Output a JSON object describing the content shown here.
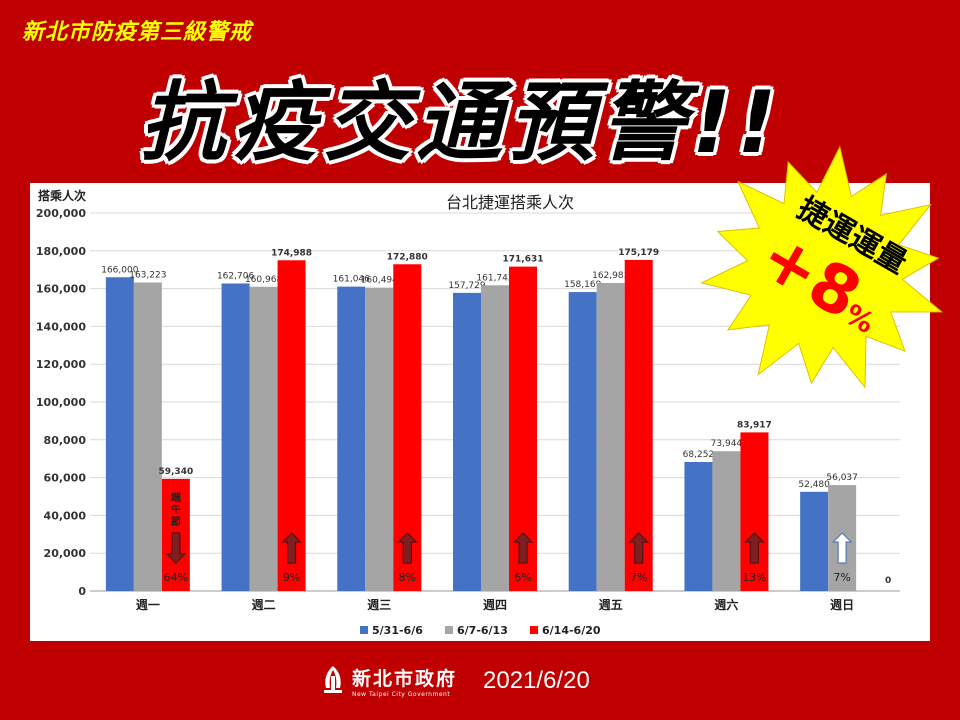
{
  "header": {
    "top_label": "新北市防疫第三級警戒",
    "headline": "抗疫交通預警!!"
  },
  "burst": {
    "line1": "捷運運量",
    "value": "+8",
    "unit": "%"
  },
  "chart_data": {
    "type": "bar",
    "title": "台北捷運搭乘人次",
    "ylabel": "搭乘人次",
    "ylim": [
      0,
      200000
    ],
    "yticks": [
      "0",
      "20,000",
      "40,000",
      "60,000",
      "80,000",
      "100,000",
      "120,000",
      "140,000",
      "160,000",
      "180,000",
      "200,000"
    ],
    "categories": [
      "週一",
      "週二",
      "週三",
      "週四",
      "週五",
      "週六",
      "週日"
    ],
    "legend_position": "bottom",
    "grid": true,
    "series": [
      {
        "name": "5/31-6/6",
        "color": "#4472c4",
        "values": [
          166000,
          162706,
          161046,
          157729,
          158169,
          68252,
          52480
        ],
        "labels": [
          "166,000",
          "162,706",
          "161,046",
          "157,729",
          "158,169",
          "68,252",
          "52,480"
        ]
      },
      {
        "name": "6/7-6/13",
        "color": "#a5a5a5",
        "values": [
          163223,
          160968,
          160494,
          161742,
          162981,
          73944,
          56037
        ],
        "labels": [
          "163,223",
          "160,968",
          "160,494",
          "161,742",
          "162,981",
          "73,944",
          "56,037"
        ]
      },
      {
        "name": "6/14-6/20",
        "color": "#ff0000",
        "values": [
          59340,
          174988,
          172880,
          171631,
          175179,
          83917,
          0
        ],
        "labels": [
          "59,340",
          "174,988",
          "172,880",
          "171,631",
          "175,179",
          "83,917",
          "0"
        ]
      }
    ],
    "annotations": {
      "holiday_note": "端午節",
      "changes": [
        {
          "text": "64%",
          "direction": "down"
        },
        {
          "text": "9%",
          "direction": "up"
        },
        {
          "text": "8%",
          "direction": "up"
        },
        {
          "text": "6%",
          "direction": "up"
        },
        {
          "text": "7%",
          "direction": "up"
        },
        {
          "text": "13%",
          "direction": "up"
        },
        {
          "text": "7%",
          "direction": "up-outline"
        }
      ]
    }
  },
  "footer": {
    "gov_name": "新北市政府",
    "gov_en": "New Taipei City Government",
    "date": "2021/6/20"
  }
}
